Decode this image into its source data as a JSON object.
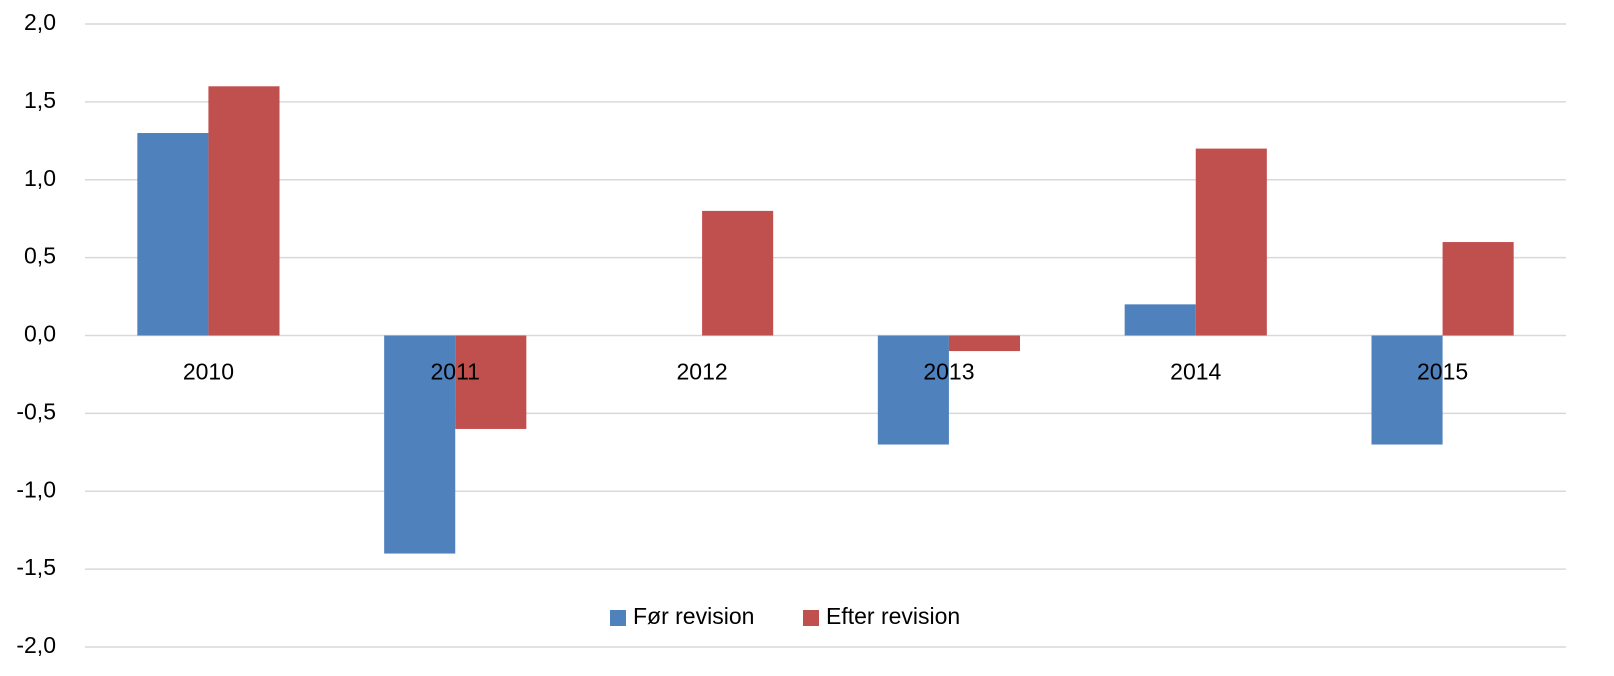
{
  "chart_data": {
    "type": "bar",
    "categories": [
      "2010",
      "2011",
      "2012",
      "2013",
      "2014",
      "2015"
    ],
    "series": [
      {
        "name": "Før revision",
        "color": "#4f81bd",
        "values": [
          1.3,
          -1.4,
          0,
          -0.7,
          0.2,
          -0.7
        ]
      },
      {
        "name": "Efter revision",
        "color": "#c0504d",
        "values": [
          1.6,
          -0.6,
          0.8,
          -0.1,
          1.2,
          0.6
        ]
      }
    ],
    "ylim": [
      -2,
      2
    ],
    "yticks": [
      {
        "value": -2,
        "label": "-2,0"
      },
      {
        "value": -1.5,
        "label": "-1,5"
      },
      {
        "value": -1,
        "label": "-1,0"
      },
      {
        "value": -0.5,
        "label": "-0,5"
      },
      {
        "value": 0,
        "label": "0,0"
      },
      {
        "value": 0.5,
        "label": "0,5"
      },
      {
        "value": 1,
        "label": "1,0"
      },
      {
        "value": 1.5,
        "label": "1,5"
      },
      {
        "value": 2,
        "label": "2,0"
      }
    ],
    "grid": true,
    "legend": "bottom"
  }
}
